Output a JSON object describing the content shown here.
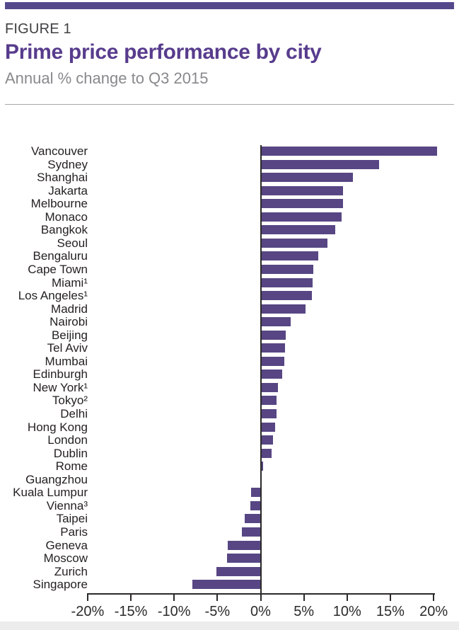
{
  "header": {
    "figure_label": "FIGURE 1",
    "title": "Prime price performance by city",
    "subtitle": "Annual % change to Q3 2015"
  },
  "colors": {
    "accent_band": "#55498c",
    "title_text": "#583c8d",
    "bar": "#574683",
    "axis_line": "#2b2a29"
  },
  "chart_data": {
    "type": "bar",
    "orientation": "horizontal",
    "title": "Prime price performance by city",
    "subtitle": "Annual % change to Q3 2015",
    "xlabel": "Annual % change",
    "ylabel": "",
    "xlim": [
      -20,
      20
    ],
    "grid": false,
    "xtick_labels": [
      "-20%",
      "-15%",
      "-10%",
      "-5%",
      "0%",
      "5%",
      "10%",
      "15%",
      "20%"
    ],
    "xtick_values": [
      -20,
      -15,
      -10,
      -5,
      0,
      5,
      10,
      15,
      20
    ],
    "categories": [
      "Vancouver",
      "Sydney",
      "Shanghai",
      "Jakarta",
      "Melbourne",
      "Monaco",
      "Bangkok",
      "Seoul",
      "Bengaluru",
      "Cape Town",
      "Miami¹",
      "Los Angeles¹",
      "Madrid",
      "Nairobi",
      "Beijing",
      "Tel Aviv",
      "Mumbai",
      "Edinburgh",
      "New York¹",
      "Tokyo²",
      "Delhi",
      "Hong Kong",
      "London",
      "Dublin",
      "Rome",
      "Guangzhou",
      "Kuala Lumpur",
      "Vienna³",
      "Taipei",
      "Paris",
      "Geneva",
      "Moscow",
      "Zurich",
      "Singapore"
    ],
    "values": [
      20.4,
      13.7,
      10.7,
      9.5,
      9.5,
      9.4,
      8.6,
      7.7,
      6.7,
      6.1,
      6.0,
      5.9,
      5.2,
      3.5,
      2.9,
      2.8,
      2.7,
      2.5,
      2.0,
      1.8,
      1.8,
      1.7,
      1.4,
      1.3,
      0.3,
      0.0,
      -1.1,
      -1.2,
      -1.8,
      -2.2,
      -3.8,
      -3.9,
      -5.1,
      -7.9
    ]
  }
}
